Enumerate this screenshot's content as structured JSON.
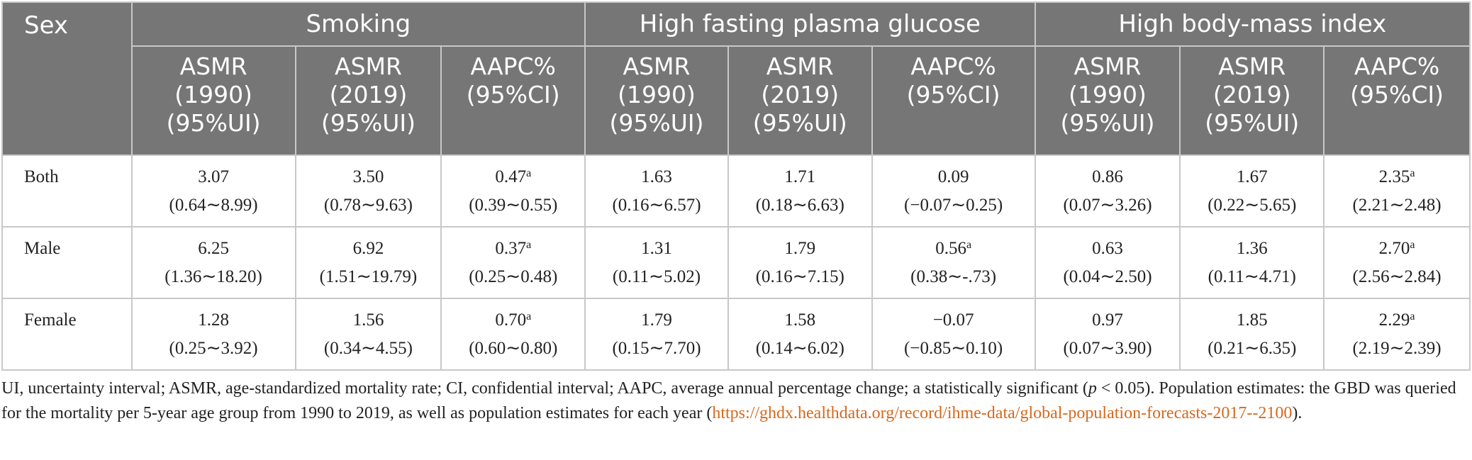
{
  "header": {
    "sex": "Sex",
    "groups": [
      "Smoking",
      "High fasting plasma glucose",
      "High body-mass index"
    ],
    "asmr1990": [
      "ASMR",
      "(1990)",
      "(95%UI)"
    ],
    "asmr2019": [
      "ASMR",
      "(2019)",
      "(95%UI)"
    ],
    "aapc": [
      "AAPC%",
      "(95%CI)"
    ]
  },
  "rows": [
    {
      "sex": "Both",
      "cells": [
        {
          "value": "3.07",
          "ci": "(0.64∼8.99)",
          "sup": ""
        },
        {
          "value": "3.50",
          "ci": "(0.78∼9.63)",
          "sup": ""
        },
        {
          "value": "0.47",
          "ci": "(0.39∼0.55)",
          "sup": "a"
        },
        {
          "value": "1.63",
          "ci": "(0.16∼6.57)",
          "sup": ""
        },
        {
          "value": "1.71",
          "ci": "(0.18∼6.63)",
          "sup": ""
        },
        {
          "value": "0.09",
          "ci": "(−0.07∼0.25)",
          "sup": ""
        },
        {
          "value": "0.86",
          "ci": "(0.07∼3.26)",
          "sup": ""
        },
        {
          "value": "1.67",
          "ci": "(0.22∼5.65)",
          "sup": ""
        },
        {
          "value": "2.35",
          "ci": "(2.21∼2.48)",
          "sup": "a"
        }
      ]
    },
    {
      "sex": "Male",
      "cells": [
        {
          "value": "6.25",
          "ci": "(1.36∼18.20)",
          "sup": ""
        },
        {
          "value": "6.92",
          "ci": "(1.51∼19.79)",
          "sup": ""
        },
        {
          "value": "0.37",
          "ci": "(0.25∼0.48)",
          "sup": "a"
        },
        {
          "value": "1.31",
          "ci": "(0.11∼5.02)",
          "sup": ""
        },
        {
          "value": "1.79",
          "ci": "(0.16∼7.15)",
          "sup": ""
        },
        {
          "value": "0.56",
          "ci": "(0.38∼-.73)",
          "sup": "a"
        },
        {
          "value": "0.63",
          "ci": "(0.04∼2.50)",
          "sup": ""
        },
        {
          "value": "1.36",
          "ci": "(0.11∼4.71)",
          "sup": ""
        },
        {
          "value": "2.70",
          "ci": "(2.56∼2.84)",
          "sup": "a"
        }
      ]
    },
    {
      "sex": "Female",
      "cells": [
        {
          "value": "1.28",
          "ci": "(0.25∼3.92)",
          "sup": ""
        },
        {
          "value": "1.56",
          "ci": "(0.34∼4.55)",
          "sup": ""
        },
        {
          "value": "0.70",
          "ci": "(0.60∼0.80)",
          "sup": "a"
        },
        {
          "value": "1.79",
          "ci": "(0.15∼7.70)",
          "sup": ""
        },
        {
          "value": "1.58",
          "ci": "(0.14∼6.02)",
          "sup": ""
        },
        {
          "value": "−0.07",
          "ci": "(−0.85∼0.10)",
          "sup": ""
        },
        {
          "value": "0.97",
          "ci": "(0.07∼3.90)",
          "sup": ""
        },
        {
          "value": "1.85",
          "ci": "(0.21∼6.35)",
          "sup": ""
        },
        {
          "value": "2.29",
          "ci": "(2.19∼2.39)",
          "sup": "a"
        }
      ]
    }
  ],
  "footnote": {
    "text_before_p": "UI, uncertainty interval; ASMR, age-standardized mortality rate; CI, confidential interval; AAPC, average annual percentage change; a statistically significant (",
    "p_symbol": "p",
    "text_after_p": " < 0.05). Population estimates: the GBD was queried for the mortality per 5-year age group from 1990 to 2019, as well as population estimates for each year (",
    "link_text": "https://ghdx.healthdata.org/record/ihme-data/global-population-forecasts-2017--2100",
    "text_end": ")."
  },
  "colors": {
    "header_bg": "#767676",
    "header_text": "#ffffff",
    "grid": "#c8c8c8",
    "link": "#d4691e"
  }
}
